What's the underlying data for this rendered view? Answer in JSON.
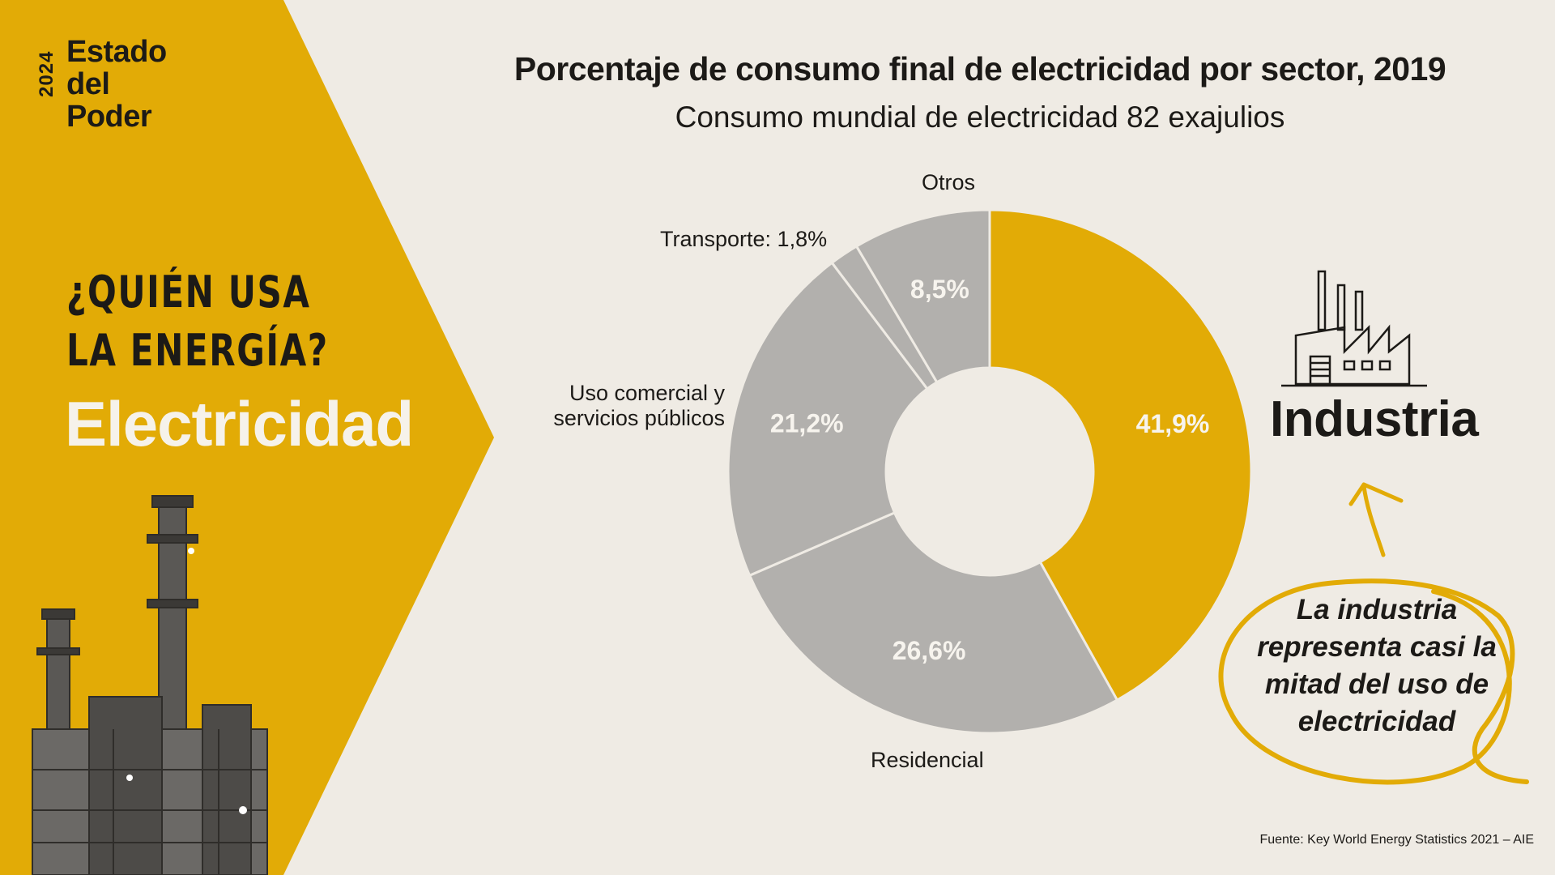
{
  "brand": {
    "year": "2024",
    "name": "Estado del\nPoder"
  },
  "left": {
    "question_line1": "¿QUIÉN USA",
    "question_line2": "LA ENERGÍA?",
    "topic": "Electricidad"
  },
  "colors": {
    "accent": "#e2ab06",
    "gray": "#b2b0ad",
    "background": "#efebe4",
    "text": "#1c1a17"
  },
  "chart_data": {
    "type": "pie",
    "donut": true,
    "title": "Porcentaje de consumo final de electricidad por sector, 2019",
    "subtitle": "Consumo mundial de electricidad 82 exajulios",
    "slices": [
      {
        "label": "Industria",
        "value": 41.9,
        "value_label": "41,9%",
        "color": "#e2ab06"
      },
      {
        "label": "Residencial",
        "value": 26.6,
        "value_label": "26,6%",
        "color": "#b2b0ad"
      },
      {
        "label": "Uso comercial y servicios públicos",
        "value": 21.2,
        "value_label": "21,2%",
        "color": "#b2b0ad"
      },
      {
        "label": "Transporte",
        "value": 1.8,
        "value_label": "1,8%",
        "color": "#b2b0ad"
      },
      {
        "label": "Otros",
        "value": 8.5,
        "value_label": "8,5%",
        "color": "#b2b0ad"
      }
    ],
    "outside_labels": {
      "otros": "Otros",
      "transporte": "Transporte: 1,8%",
      "comercial_line1": "Uso comercial y",
      "comercial_line2": "servicios públicos",
      "residencial": "Residencial"
    },
    "source": "Fuente: Key World Energy Statistics 2021 – AIE"
  },
  "callout": {
    "highlight": "Industria",
    "icon": "factory-icon",
    "text": "La industria representa casi la mitad del uso de electricidad"
  }
}
